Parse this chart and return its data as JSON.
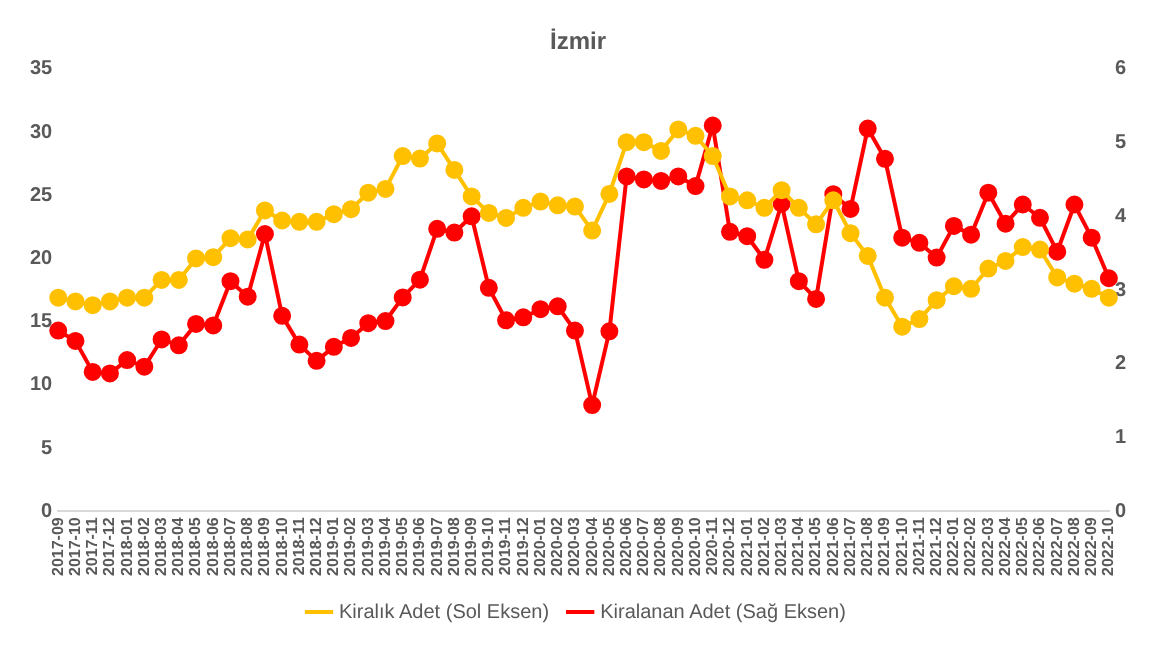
{
  "chart_data": {
    "type": "line",
    "title": "İzmir",
    "categories": [
      "2017-09",
      "2017-10",
      "2017-11",
      "2017-12",
      "2018-01",
      "2018-02",
      "2018-03",
      "2018-04",
      "2018-05",
      "2018-06",
      "2018-07",
      "2018-08",
      "2018-09",
      "2018-10",
      "2018-11",
      "2018-12",
      "2019-01",
      "2019-02",
      "2019-03",
      "2019-04",
      "2019-05",
      "2019-06",
      "2019-07",
      "2019-08",
      "2019-09",
      "2019-10",
      "2019-11",
      "2019-12",
      "2020-01",
      "2020-02",
      "2020-03",
      "2020-04",
      "2020-05",
      "2020-06",
      "2020-07",
      "2020-08",
      "2020-09",
      "2020-10",
      "2020-11",
      "2020-12",
      "2021-01",
      "2021-02",
      "2021-03",
      "2021-04",
      "2021-05",
      "2021-06",
      "2021-07",
      "2021-08",
      "2021-09",
      "2021-10",
      "2021-11",
      "2021-12",
      "2022-01",
      "2022-02",
      "2022-03",
      "2022-04",
      "2022-05",
      "2022-06",
      "2022-07",
      "2022-08",
      "2022-09",
      "2022-10"
    ],
    "series": [
      {
        "name": "Kiralık Adet (Sol Eksen)",
        "color": "#ffc000",
        "values": [
          16.9,
          16.6,
          16.3,
          16.6,
          16.9,
          16.9,
          18.3,
          18.3,
          20.0,
          20.1,
          21.6,
          21.5,
          23.8,
          23.0,
          22.9,
          22.9,
          23.5,
          23.9,
          25.2,
          25.5,
          28.1,
          27.9,
          29.1,
          27.0,
          24.9,
          23.6,
          23.2,
          24.0,
          24.5,
          24.2,
          24.1,
          22.2,
          25.1,
          29.2,
          29.2,
          28.5,
          30.2,
          29.7,
          28.1,
          24.9,
          24.6,
          24.0,
          25.4,
          24.0,
          22.7,
          24.6,
          22.0,
          20.2,
          16.9,
          14.6,
          15.2,
          16.7,
          17.8,
          17.6,
          19.2,
          19.8,
          20.9,
          20.7,
          18.5,
          18.0,
          17.6,
          16.9
        ]
      },
      {
        "name": "Kiralanan Adet (Sağ Eksen)",
        "color": "#ff0000",
        "axis": "y2",
        "values": [
          2.45,
          2.31,
          1.89,
          1.87,
          2.05,
          1.96,
          2.33,
          2.25,
          2.54,
          2.52,
          3.12,
          2.91,
          3.76,
          2.65,
          2.26,
          2.04,
          2.23,
          2.35,
          2.55,
          2.58,
          2.9,
          3.14,
          3.83,
          3.78,
          4.0,
          3.03,
          2.59,
          2.63,
          2.74,
          2.78,
          2.45,
          1.44,
          2.44,
          4.54,
          4.5,
          4.48,
          4.54,
          4.41,
          5.23,
          3.79,
          3.73,
          3.41,
          4.17,
          3.12,
          2.88,
          4.3,
          4.1,
          5.19,
          4.78,
          3.71,
          3.64,
          3.44,
          3.87,
          3.75,
          4.32,
          3.9,
          4.16,
          3.98,
          3.52,
          4.16,
          3.71,
          3.16
        ]
      }
    ],
    "ylim": [
      0,
      35
    ],
    "yticks": [
      0,
      5,
      10,
      15,
      20,
      25,
      30,
      35
    ],
    "y2lim": [
      0,
      6
    ],
    "y2ticks": [
      0,
      1,
      2,
      3,
      4,
      5,
      6
    ],
    "marker": "circle",
    "line_style": "solid",
    "legend": "bottom",
    "grid": false
  }
}
